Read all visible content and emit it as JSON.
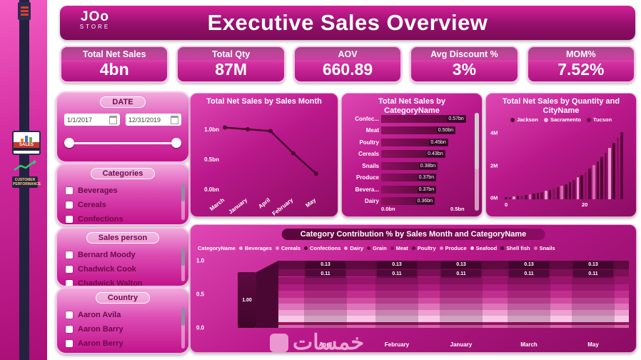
{
  "colors": {
    "accent": "#c2138b",
    "dark": "#4e0834",
    "panel_border": "#f3a1d8"
  },
  "sidebar": {
    "nav": [
      {
        "label": "SALES"
      },
      {
        "label": "CUSTOMER PERFORMANCE"
      }
    ]
  },
  "header": {
    "title": "Executive Sales Overview",
    "logo_top": "JOo",
    "logo_bottom": "STORE"
  },
  "kpis": [
    {
      "label": "Total Net Sales",
      "value": "4bn"
    },
    {
      "label": "Total Qty",
      "value": "87M"
    },
    {
      "label": "AOV",
      "value": "660.89"
    },
    {
      "label": "Avg Discount %",
      "value": "3%"
    },
    {
      "label": "MOM%",
      "value": "7.52%"
    }
  ],
  "filters": {
    "date": {
      "title": "DATE",
      "start": "1/1/2017",
      "end": "12/31/2019"
    },
    "categories": {
      "title": "Categories",
      "items": [
        "Beverages",
        "Cereals",
        "Confections"
      ]
    },
    "salesperson": {
      "title": "Sales person",
      "items": [
        "Bernard Moody",
        "Chadwick Cook",
        "Chadwick Walton"
      ]
    },
    "country": {
      "title": "Country",
      "items": [
        "Aaron Avila",
        "Aaron Barry",
        "Aaron Berry"
      ]
    }
  },
  "watermark": "خمسات",
  "chart_data": [
    {
      "type": "line",
      "title": "Total Net Sales by Sales Month",
      "categories": [
        "March",
        "January",
        "April",
        "February",
        "May"
      ],
      "values": [
        1.03,
        1.0,
        0.97,
        0.6,
        0.26
      ],
      "yticks": [
        "1.0bn",
        "0.5bn",
        "0.0bn"
      ],
      "ylim": [
        0,
        1.1
      ],
      "line_color": "#4e0834"
    },
    {
      "type": "bar",
      "orientation": "horizontal",
      "title": "Total Net Sales by CategoryName",
      "categories": [
        "Confec...",
        "Meat",
        "Poultry",
        "Cereals",
        "Snails",
        "Produce",
        "Bevera...",
        "Dairy"
      ],
      "values": [
        0.57,
        0.5,
        0.45,
        0.43,
        0.38,
        0.37,
        0.37,
        0.36
      ],
      "value_labels": [
        "0.57bn",
        "0.50bn",
        "0.45bn",
        "0.43bn",
        "0.38bn",
        "0.37bn",
        "0.37bn",
        "0.36bn"
      ],
      "xticks": [
        "0.0bn",
        "0.5bn"
      ],
      "xlim": [
        0,
        0.6
      ],
      "bar_color": "#5c0a3e"
    },
    {
      "type": "bar",
      "orientation": "vertical",
      "title": "Total Net Sales by Quantity and CityName",
      "legend": [
        {
          "label": "Jackson",
          "color": "#4e0834"
        },
        {
          "label": "Sacramento",
          "color": "#f3bbe0"
        },
        {
          "label": "Tucson",
          "color": "#70094c"
        }
      ],
      "yticks": [
        "4M",
        "2M",
        "0M"
      ],
      "xticks": [
        "0",
        "20"
      ],
      "ylim": [
        0,
        4.3
      ],
      "values": [
        0.12,
        0.14,
        0.17,
        0.2,
        0.22,
        0.26,
        0.3,
        0.34,
        0.38,
        0.44,
        0.5,
        0.57,
        0.64,
        0.72,
        0.82,
        0.92,
        1.05,
        1.18,
        1.32,
        1.48,
        1.65,
        1.85,
        2.05,
        2.3,
        2.55,
        2.8,
        3.1,
        3.4,
        3.7,
        4.05
      ],
      "palette": [
        "#4e0834",
        "#6e0d4a",
        "#e79ccd",
        "#4e0834",
        "#8c1060",
        "#5c0a3e",
        "#d668ad",
        "#4e0834"
      ]
    },
    {
      "type": "area",
      "variant": "ribbon",
      "title": "Category Contribution % by Sales Month and CategoryName",
      "legend_title": "CategoryName",
      "legend": [
        {
          "label": "Beverages",
          "color": "#f6bfe3"
        },
        {
          "label": "Cereals",
          "color": "#eea6d6"
        },
        {
          "label": "Confections",
          "color": "#4e0834"
        },
        {
          "label": "Dairy",
          "color": "#f1b2dc"
        },
        {
          "label": "Grain",
          "color": "#6d0c49"
        },
        {
          "label": "Meat",
          "color": "#8c1060"
        },
        {
          "label": "Poultry",
          "color": "#5d0a40"
        },
        {
          "label": "Produce",
          "color": "#e98fc9"
        },
        {
          "label": "Seafood",
          "color": "#f9d9ee"
        },
        {
          "label": "Shell fish",
          "color": "#3f0629"
        },
        {
          "label": "Snails",
          "color": "#d977b4"
        }
      ],
      "categories": [
        "April",
        "February",
        "January",
        "March",
        "May"
      ],
      "yticks": [
        "1.0",
        "0.5",
        "0.0"
      ],
      "start_label": "1.00",
      "segment_labels": [
        "0.13",
        "0.11"
      ],
      "fractions": [
        0.13,
        0.11,
        0.11,
        0.1,
        0.1,
        0.09,
        0.09,
        0.09,
        0.09,
        0.05,
        0.04
      ],
      "band_colors": [
        "#5e0a41",
        "#7c0f56",
        "#96156a",
        "#ad1c7c",
        "#c02e8e",
        "#cf4da2",
        "#de74b9",
        "#eda0d1",
        "#f6c8e6",
        "#9c125f",
        "#d668ad"
      ]
    }
  ]
}
